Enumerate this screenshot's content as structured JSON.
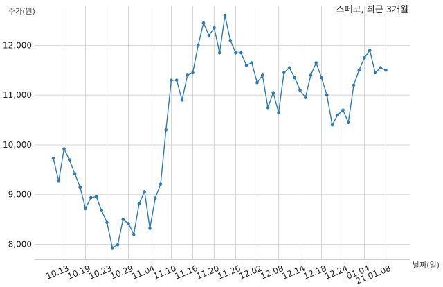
{
  "chart_data": {
    "type": "line",
    "title": "스페코, 최근 3개월",
    "xlabel": "날짜(일)",
    "ylabel": "주가(원)",
    "ylim": [
      7700,
      12800
    ],
    "yticks": [
      8000,
      9000,
      10000,
      11000,
      12000
    ],
    "ytick_labels": [
      "8,000",
      "9,000",
      "10,000",
      "11,000",
      "12,000"
    ],
    "xtick_labels": [
      "10.13",
      "10.19",
      "10.23",
      "10.29",
      "11.04",
      "11.10",
      "11.16",
      "11.20",
      "11.26",
      "12.02",
      "12.08",
      "12.14",
      "12.18",
      "12.24",
      "01.04",
      "21.01.08"
    ],
    "xtick_positions": [
      2,
      6,
      10,
      14,
      18,
      22,
      26,
      30,
      34,
      38,
      42,
      46,
      50,
      54,
      58,
      62
    ],
    "grid": true,
    "line_color": "#2b7bb9",
    "series": [
      {
        "values": [
          9730,
          9270,
          9920,
          9700,
          9420,
          9150,
          8720,
          8940,
          8960,
          8680,
          8440,
          7930,
          7990,
          8500,
          8420,
          8200,
          8820,
          9060,
          8320,
          8930,
          9210,
          10300,
          11300,
          11300,
          10900,
          11400,
          11450,
          12000,
          12450,
          12200,
          12350,
          11850,
          12600,
          12100,
          11850,
          11850,
          11600,
          11650,
          11250,
          11400,
          10750,
          11050,
          10650,
          11450,
          11550,
          11350,
          11100,
          10950,
          11400,
          11650,
          11350,
          11000,
          10400,
          10600,
          10700,
          10450,
          11200,
          11500,
          11750,
          11900,
          11450,
          11550,
          11500
        ]
      }
    ]
  }
}
